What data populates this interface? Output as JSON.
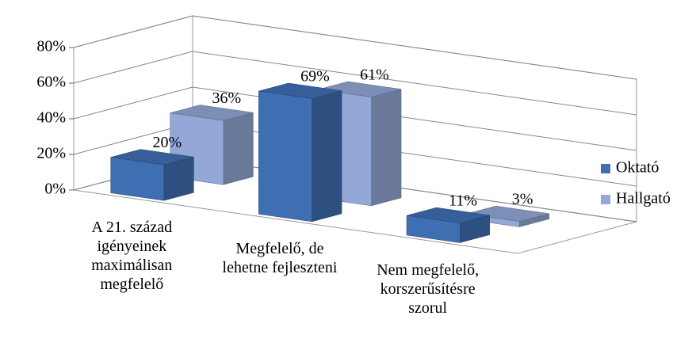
{
  "chart_data": {
    "type": "bar3d",
    "categories": [
      "A 21. század igényeinek maximálisan megfelelő",
      "Megfelelő, de lehetne fejleszteni",
      "Nem megfelelő, korszerűsítésre szorul"
    ],
    "series": [
      {
        "name": "Oktató",
        "color": "#3f6fb3",
        "values": [
          20,
          69,
          11
        ],
        "value_labels": [
          "20%",
          "69%",
          "11%"
        ]
      },
      {
        "name": "Hallgató",
        "color": "#93a8d6",
        "values": [
          36,
          61,
          3
        ],
        "value_labels": [
          "36%",
          "61%",
          "3%"
        ]
      }
    ],
    "ylim": [
      0,
      80
    ],
    "yticks": [
      {
        "value": 0,
        "label": "0%"
      },
      {
        "value": 20,
        "label": "20%"
      },
      {
        "value": 40,
        "label": "40%"
      },
      {
        "value": 60,
        "label": "60%"
      },
      {
        "value": 80,
        "label": "80%"
      }
    ],
    "grid": true,
    "legend": "right"
  }
}
